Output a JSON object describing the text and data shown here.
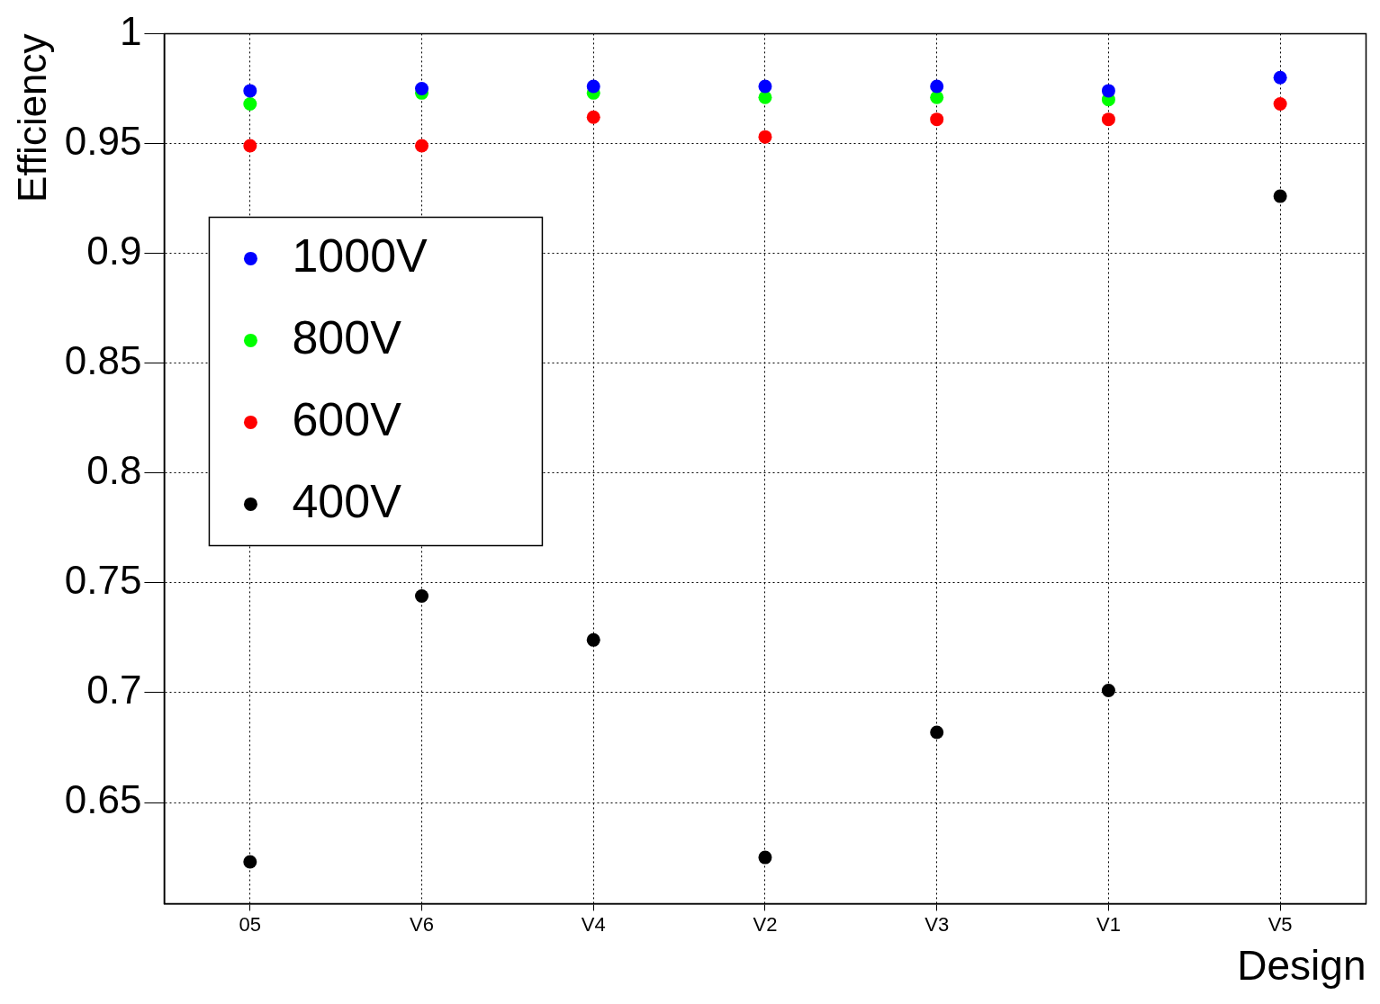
{
  "chart_data": {
    "type": "scatter",
    "xlabel": "Design",
    "ylabel": "Efficiency",
    "categories": [
      "05",
      "V6",
      "V4",
      "V2",
      "V3",
      "V1",
      "V5"
    ],
    "series": [
      {
        "name": "1000V",
        "color": "#0000ff",
        "values": [
          0.974,
          0.975,
          0.976,
          0.976,
          0.976,
          0.974,
          0.98
        ]
      },
      {
        "name": "800V",
        "color": "#00ff00",
        "values": [
          0.968,
          0.973,
          0.973,
          0.971,
          0.971,
          0.97,
          null
        ]
      },
      {
        "name": "600V",
        "color": "#ff0000",
        "values": [
          0.949,
          0.949,
          0.962,
          0.953,
          0.961,
          0.961,
          0.968
        ]
      },
      {
        "name": "400V",
        "color": "#000000",
        "values": [
          0.623,
          0.744,
          0.724,
          0.625,
          0.682,
          0.701,
          0.926
        ]
      }
    ],
    "ylim": [
      0.604,
      1
    ],
    "yticks": [
      0.65,
      0.7,
      0.75,
      0.8,
      0.85,
      0.9,
      0.95,
      1
    ],
    "grid": true,
    "legend": "left",
    "marker": "circle"
  }
}
